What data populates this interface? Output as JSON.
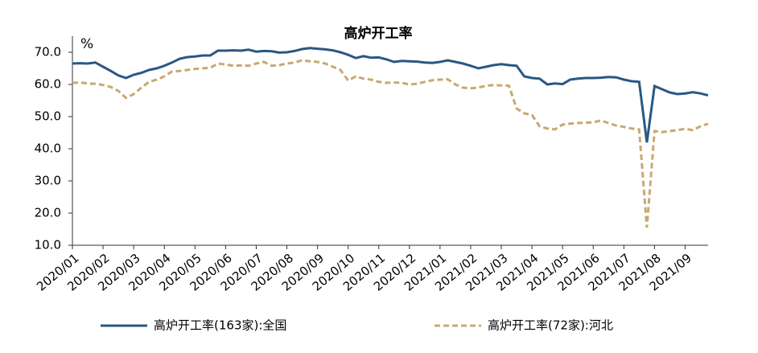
{
  "chart_data": {
    "type": "line",
    "title": "高炉开工率",
    "y_unit": "%",
    "categories": [
      "2020/01",
      null,
      null,
      null,
      "2020/02",
      null,
      null,
      null,
      "2020/03",
      null,
      null,
      null,
      "2020/04",
      null,
      null,
      null,
      "2020/05",
      null,
      null,
      null,
      "2020/06",
      null,
      null,
      null,
      "2020/07",
      null,
      null,
      null,
      "2020/08",
      null,
      null,
      null,
      "2020/09",
      null,
      null,
      null,
      "2020/10",
      null,
      null,
      null,
      "2020/11",
      null,
      null,
      null,
      "2020/12",
      null,
      null,
      null,
      "2021/01",
      null,
      null,
      null,
      "2021/02",
      null,
      null,
      null,
      "2021/03",
      null,
      null,
      null,
      "2021/04",
      null,
      null,
      null,
      "2021/05",
      null,
      null,
      null,
      "2021/06",
      null,
      null,
      null,
      "2021/07",
      null,
      null,
      null,
      "2021/08",
      null,
      null,
      null,
      "2021/09",
      null,
      null,
      null
    ],
    "series": [
      {
        "name": "高炉开工率(163家):全国",
        "color": "#2a5783",
        "dash": false,
        "values": [
          66.5,
          66.6,
          66.5,
          66.8,
          65.5,
          64.2,
          62.8,
          62.0,
          63.0,
          63.6,
          64.5,
          65.0,
          65.8,
          66.8,
          68.0,
          68.5,
          68.7,
          69.0,
          69.0,
          70.5,
          70.5,
          70.6,
          70.5,
          70.8,
          70.2,
          70.4,
          70.3,
          69.9,
          70.0,
          70.4,
          71.0,
          71.3,
          71.1,
          70.9,
          70.6,
          70.0,
          69.2,
          68.2,
          68.8,
          68.3,
          68.4,
          67.8,
          67.0,
          67.3,
          67.2,
          67.1,
          66.8,
          66.7,
          67.0,
          67.5,
          67.0,
          66.5,
          65.8,
          65.0,
          65.5,
          66.0,
          66.3,
          66.0,
          65.8,
          62.5,
          62.0,
          61.8,
          60.0,
          60.3,
          60.1,
          61.5,
          61.8,
          62.0,
          62.0,
          62.1,
          62.3,
          62.2,
          61.5,
          61.0,
          60.8,
          42.0,
          59.5,
          58.5,
          57.5,
          57.0,
          57.2,
          57.6,
          57.2,
          56.6
        ]
      },
      {
        "name": "高炉开工率(72家):河北",
        "color": "#c9a872",
        "dash": true,
        "values": [
          60.5,
          60.6,
          60.3,
          60.2,
          59.8,
          59.2,
          58.0,
          55.8,
          57.0,
          59.0,
          60.8,
          61.5,
          62.5,
          64.0,
          64.2,
          64.5,
          64.8,
          65.0,
          65.2,
          66.5,
          66.2,
          65.8,
          65.9,
          65.8,
          66.5,
          67.0,
          65.8,
          66.0,
          66.5,
          66.8,
          67.5,
          67.2,
          67.0,
          66.5,
          65.5,
          64.5,
          61.2,
          62.5,
          61.8,
          61.5,
          60.8,
          60.5,
          60.6,
          60.5,
          60.0,
          60.2,
          60.8,
          61.3,
          61.5,
          61.6,
          60.0,
          59.0,
          58.8,
          59.0,
          59.6,
          59.8,
          59.7,
          59.6,
          52.5,
          51.0,
          50.5,
          47.0,
          46.3,
          46.0,
          47.5,
          47.8,
          48.0,
          48.1,
          48.2,
          48.8,
          48.0,
          47.2,
          46.8,
          46.3,
          46.0,
          15.5,
          45.5,
          45.2,
          45.5,
          45.8,
          46.2,
          45.8,
          47.0,
          47.8
        ]
      }
    ],
    "ylim": [
      10,
      75
    ],
    "yticks": [
      {
        "value": 10,
        "label": "10.0"
      },
      {
        "value": 20,
        "label": "20.0"
      },
      {
        "value": 30,
        "label": "30.0"
      },
      {
        "value": 40,
        "label": "40.0"
      },
      {
        "value": 50,
        "label": "50.0"
      },
      {
        "value": 60,
        "label": "60.0"
      },
      {
        "value": 70,
        "label": "70.0"
      }
    ],
    "grid": false,
    "legend": "bottom"
  }
}
